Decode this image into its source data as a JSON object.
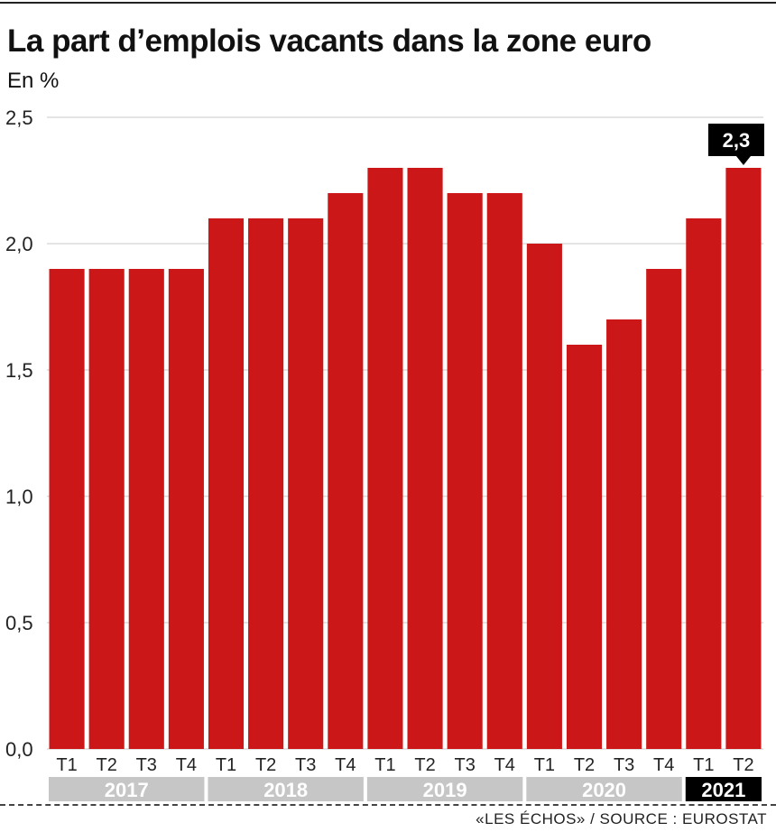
{
  "header": {
    "title": "La part d’emplois vacants dans la zone euro",
    "subtitle": "En %"
  },
  "footer": {
    "source": "«LES ÉCHOS» / SOURCE : EUROSTAT"
  },
  "colors": {
    "bar": "#cc1719",
    "grid": "#c8c8c8",
    "year_band": "#c6c6c6",
    "year_band_highlight": "#000000",
    "callout": "#000000"
  },
  "chart_data": {
    "type": "bar",
    "title": "La part d’emplois vacants dans la zone euro",
    "ylabel": "En %",
    "ylim": [
      0,
      2.5
    ],
    "yticks": [
      "0,0",
      "0,5",
      "1,0",
      "1,5",
      "2,0",
      "2,5"
    ],
    "ytick_values": [
      0,
      0.5,
      1.0,
      1.5,
      2.0,
      2.5
    ],
    "grid": true,
    "categories": [
      "T1",
      "T2",
      "T3",
      "T4",
      "T1",
      "T2",
      "T3",
      "T4",
      "T1",
      "T2",
      "T3",
      "T4",
      "T1",
      "T2",
      "T3",
      "T4",
      "T1",
      "T2"
    ],
    "values": [
      1.9,
      1.9,
      1.9,
      1.9,
      2.1,
      2.1,
      2.1,
      2.2,
      2.3,
      2.3,
      2.2,
      2.2,
      2.0,
      1.6,
      1.7,
      1.9,
      2.1,
      2.3
    ],
    "year_groups": [
      {
        "label": "2017",
        "count": 4,
        "highlight": false
      },
      {
        "label": "2018",
        "count": 4,
        "highlight": false
      },
      {
        "label": "2019",
        "count": 4,
        "highlight": false
      },
      {
        "label": "2020",
        "count": 4,
        "highlight": false
      },
      {
        "label": "2021",
        "count": 2,
        "highlight": true
      }
    ],
    "annotation": {
      "index": 17,
      "label": "2,3"
    }
  }
}
